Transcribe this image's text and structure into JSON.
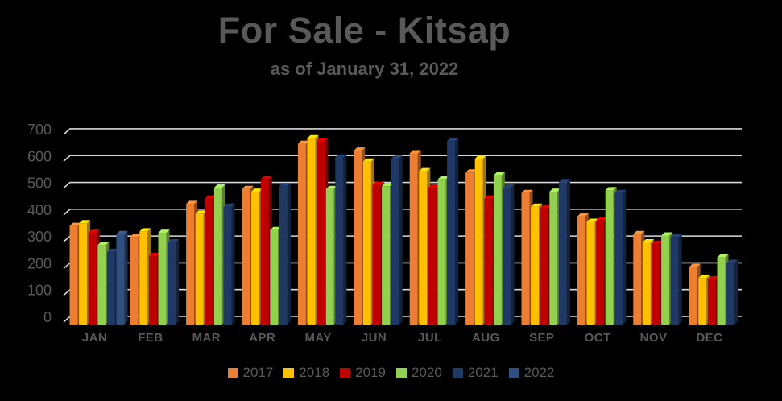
{
  "colors": {
    "background": "#000000",
    "text": "#595959",
    "gridline": "#D9D9D9"
  },
  "chart_data": {
    "type": "bar",
    "style": "3d-clustered-column",
    "title": "For Sale - Kitsap",
    "subtitle": "as of January 31, 2022",
    "categories": [
      "JAN",
      "FEB",
      "MAR",
      "APR",
      "MAY",
      "JUN",
      "JUL",
      "AUG",
      "SEP",
      "OCT",
      "NOV",
      "DEC"
    ],
    "series": [
      {
        "name": "2017",
        "color": "#ED7D31",
        "values": [
          360,
          320,
          440,
          495,
          660,
          635,
          625,
          555,
          480,
          395,
          330,
          210
        ]
      },
      {
        "name": "2018",
        "color": "#FFC000",
        "values": [
          370,
          340,
          405,
          485,
          680,
          595,
          560,
          605,
          430,
          375,
          300,
          170
        ]
      },
      {
        "name": "2019",
        "color": "#C00000",
        "values": [
          335,
          250,
          460,
          530,
          670,
          510,
          500,
          460,
          425,
          380,
          295,
          165
        ]
      },
      {
        "name": "2020",
        "color": "#92D050",
        "values": [
          290,
          335,
          500,
          345,
          495,
          505,
          530,
          545,
          485,
          490,
          325,
          245
        ]
      },
      {
        "name": "2021",
        "color": "#1F3864",
        "values": [
          265,
          300,
          430,
          505,
          610,
          605,
          670,
          500,
          520,
          480,
          320,
          225
        ]
      },
      {
        "name": "2022",
        "color": "#2F4F7F",
        "values": [
          330,
          null,
          null,
          null,
          null,
          null,
          null,
          null,
          null,
          null,
          null,
          null
        ]
      }
    ],
    "y_axis": {
      "min": 0,
      "max": 700,
      "step": 100,
      "ticks": [
        "0",
        "100",
        "200",
        "300",
        "400",
        "500",
        "600",
        "700"
      ]
    },
    "x_axis_label": "",
    "y_axis_label": "",
    "grid": true,
    "legend_position": "bottom",
    "legend_entries": [
      "2017",
      "2018",
      "2019",
      "2020",
      "2021",
      "2022"
    ]
  }
}
